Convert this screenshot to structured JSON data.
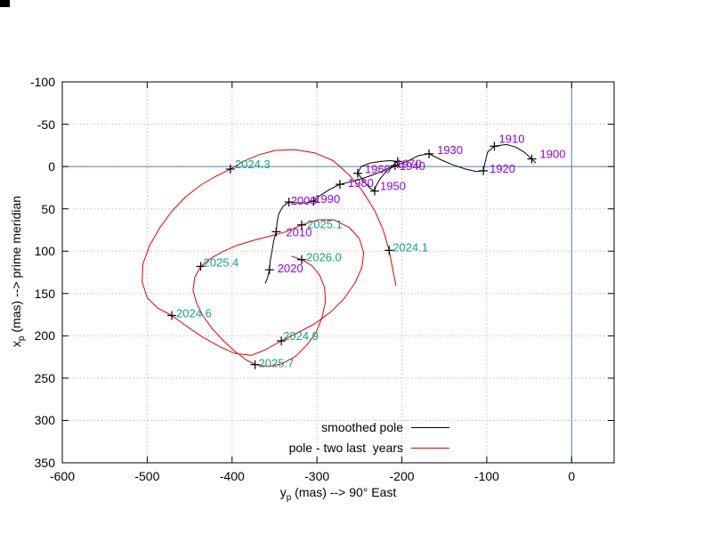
{
  "corner_artifact": {
    "present": true,
    "color": "#000000"
  },
  "axes": {
    "x": {
      "label": {
        "var": "y",
        "sub": "p",
        "rest": " (mas) --> 90° East"
      },
      "ticks": [
        "-600",
        "-500",
        "-400",
        "-300",
        "-200",
        "-100",
        "0"
      ],
      "tick_values": [
        -600,
        -500,
        -400,
        -300,
        -200,
        -100,
        0
      ],
      "range": [
        -600,
        50
      ]
    },
    "y": {
      "label": {
        "var": "x",
        "sub": "p",
        "rest": " (mas) --> prime meridian"
      },
      "ticks": [
        "-100",
        "-50",
        "0",
        "50",
        "100",
        "150",
        "200",
        "250",
        "300",
        "350"
      ],
      "tick_values": [
        -100,
        -50,
        0,
        50,
        100,
        150,
        200,
        250,
        300,
        350
      ],
      "range": [
        -100,
        350
      ]
    }
  },
  "legend": {
    "entries": [
      {
        "label": "smoothed pole",
        "color": "#000000"
      },
      {
        "label": "pole - two last  years",
        "color": "#dd0000"
      }
    ]
  },
  "colors": {
    "background": "#ffffff",
    "grid": "#b0b0b0",
    "zero_axis": "#4f81bd",
    "border": "#000000",
    "decade_label": "#9400d3",
    "epoch_label": "#0fa383",
    "marker": "#000000"
  },
  "chart_data": {
    "type": "line",
    "title": "",
    "xlabel": "y_p (mas) --> 90° East",
    "ylabel": "x_p (mas) --> prime meridian",
    "xlim": [
      -600,
      50
    ],
    "ylim": [
      350,
      -100
    ],
    "grid": true,
    "zero_axes": true,
    "legend_position": "inside-bottom-center",
    "series": [
      {
        "name": "smoothed pole",
        "color": "#000000",
        "label_color": "#9400d3",
        "points": [
          [
            -42,
            -4
          ],
          [
            -47,
            -9
          ],
          [
            -56,
            -17
          ],
          [
            -66,
            -23
          ],
          [
            -77,
            -26
          ],
          [
            -91,
            -24
          ],
          [
            -99,
            -17
          ],
          [
            -102,
            -5
          ],
          [
            -104,
            5
          ],
          [
            -112,
            6
          ],
          [
            -125,
            3
          ],
          [
            -140,
            -2
          ],
          [
            -154,
            -8
          ],
          [
            -168,
            -15
          ],
          [
            -180,
            -13
          ],
          [
            -194,
            -6
          ],
          [
            -208,
            -1
          ],
          [
            -218,
            5
          ],
          [
            -226,
            15
          ],
          [
            -231,
            24
          ],
          [
            -232,
            29
          ],
          [
            -238,
            25
          ],
          [
            -245,
            17
          ],
          [
            -252,
            8
          ],
          [
            -248,
            0
          ],
          [
            -238,
            -4
          ],
          [
            -225,
            -6
          ],
          [
            -214,
            -7
          ],
          [
            -205,
            -6
          ],
          [
            -212,
            0
          ],
          [
            -224,
            6
          ],
          [
            -240,
            12
          ],
          [
            -256,
            17
          ],
          [
            -273,
            21
          ],
          [
            -285,
            27
          ],
          [
            -296,
            34
          ],
          [
            -304,
            41
          ],
          [
            -313,
            43
          ],
          [
            -323,
            43
          ],
          [
            -333,
            42
          ],
          [
            -340,
            47
          ],
          [
            -345,
            56
          ],
          [
            -347,
            66
          ],
          [
            -348,
            77
          ],
          [
            -351,
            88
          ],
          [
            -353,
            100
          ],
          [
            -355,
            111
          ],
          [
            -356,
            122
          ],
          [
            -358,
            131
          ],
          [
            -361,
            138
          ]
        ],
        "labels": [
          {
            "text": "1900",
            "yp": -47,
            "xp": -9,
            "dx": 9,
            "dy": -1
          },
          {
            "text": "1910",
            "yp": -91,
            "xp": -24,
            "dx": 5,
            "dy": -4
          },
          {
            "text": "1920",
            "yp": -104,
            "xp": 5,
            "dx": 7,
            "dy": 2
          },
          {
            "text": "1930",
            "yp": -168,
            "xp": -15,
            "dx": 9,
            "dy": 0
          },
          {
            "text": "1940",
            "yp": -208,
            "xp": -1,
            "dx": 5,
            "dy": 5
          },
          {
            "text": "1950",
            "yp": -232,
            "xp": 29,
            "dx": 6,
            "dy": -1
          },
          {
            "text": "1960",
            "yp": -252,
            "xp": 8,
            "dx": 8,
            "dy": 0
          },
          {
            "text": "1970",
            "yp": -205,
            "xp": -6,
            "dx": -2,
            "dy": 7
          },
          {
            "text": "1980",
            "yp": -273,
            "xp": 21,
            "dx": 9,
            "dy": 3
          },
          {
            "text": "1990",
            "yp": -304,
            "xp": 41,
            "dx": 1,
            "dy": 2
          },
          {
            "text": "2000",
            "yp": -333,
            "xp": 42,
            "dx": 2,
            "dy": 3
          },
          {
            "text": "2010",
            "yp": -348,
            "xp": 77,
            "dx": 11,
            "dy": 5
          },
          {
            "text": "2020",
            "yp": -356,
            "xp": 122,
            "dx": 9,
            "dy": 3
          }
        ]
      },
      {
        "name": "pole - two last  years",
        "color": "#dd0000",
        "label_color": "#0fa383",
        "points": [
          [
            -207,
            141
          ],
          [
            -211,
            120
          ],
          [
            -215,
            99
          ],
          [
            -222,
            75
          ],
          [
            -232,
            52
          ],
          [
            -247,
            28
          ],
          [
            -262,
            10
          ],
          [
            -281,
            -7
          ],
          [
            -302,
            -16
          ],
          [
            -326,
            -20
          ],
          [
            -349,
            -19
          ],
          [
            -368,
            -14
          ],
          [
            -387,
            -6
          ],
          [
            -402,
            3
          ],
          [
            -420,
            12
          ],
          [
            -437,
            22
          ],
          [
            -455,
            36
          ],
          [
            -471,
            53
          ],
          [
            -485,
            72
          ],
          [
            -497,
            93
          ],
          [
            -505,
            115
          ],
          [
            -506,
            136
          ],
          [
            -500,
            155
          ],
          [
            -488,
            167
          ],
          [
            -471,
            176
          ],
          [
            -453,
            189
          ],
          [
            -434,
            202
          ],
          [
            -414,
            213
          ],
          [
            -396,
            221
          ],
          [
            -377,
            223
          ],
          [
            -360,
            216
          ],
          [
            -342,
            206
          ],
          [
            -322,
            196
          ],
          [
            -303,
            186
          ],
          [
            -284,
            172
          ],
          [
            -268,
            156
          ],
          [
            -255,
            137
          ],
          [
            -247,
            119
          ],
          [
            -245,
            102
          ],
          [
            -250,
            85
          ],
          [
            -262,
            72
          ],
          [
            -280,
            63
          ],
          [
            -299,
            63
          ],
          [
            -318,
            69
          ],
          [
            -336,
            77
          ],
          [
            -355,
            82
          ],
          [
            -374,
            87
          ],
          [
            -394,
            93
          ],
          [
            -412,
            101
          ],
          [
            -426,
            109
          ],
          [
            -437,
            118
          ],
          [
            -444,
            131
          ],
          [
            -446,
            146
          ],
          [
            -442,
            161
          ],
          [
            -434,
            177
          ],
          [
            -423,
            192
          ],
          [
            -410,
            206
          ],
          [
            -396,
            219
          ],
          [
            -384,
            228
          ],
          [
            -373,
            234
          ],
          [
            -357,
            236
          ],
          [
            -341,
            233
          ],
          [
            -325,
            224
          ],
          [
            -312,
            211
          ],
          [
            -301,
            196
          ],
          [
            -294,
            178
          ],
          [
            -290,
            160
          ],
          [
            -291,
            143
          ],
          [
            -297,
            128
          ],
          [
            -306,
            117
          ],
          [
            -318,
            110
          ],
          [
            -330,
            106
          ]
        ],
        "labels": [
          {
            "text": "2024.1",
            "yp": -215,
            "xp": 99,
            "dx": 4,
            "dy": 1
          },
          {
            "text": "2024.3",
            "yp": -402,
            "xp": 3,
            "dx": 5,
            "dy": -1
          },
          {
            "text": "2024.6",
            "yp": -471,
            "xp": 176,
            "dx": 5,
            "dy": 2
          },
          {
            "text": "2024.9",
            "yp": -342,
            "xp": 206,
            "dx": 2,
            "dy": -1
          },
          {
            "text": "2025.1",
            "yp": -318,
            "xp": 69,
            "dx": 6,
            "dy": 4
          },
          {
            "text": "2025.4",
            "yp": -437,
            "xp": 118,
            "dx": 3,
            "dy": 0
          },
          {
            "text": "2025.7",
            "yp": -373,
            "xp": 234,
            "dx": 4,
            "dy": 3
          },
          {
            "text": "2026.0",
            "yp": -318,
            "xp": 110,
            "dx": 5,
            "dy": 2
          }
        ]
      }
    ]
  }
}
